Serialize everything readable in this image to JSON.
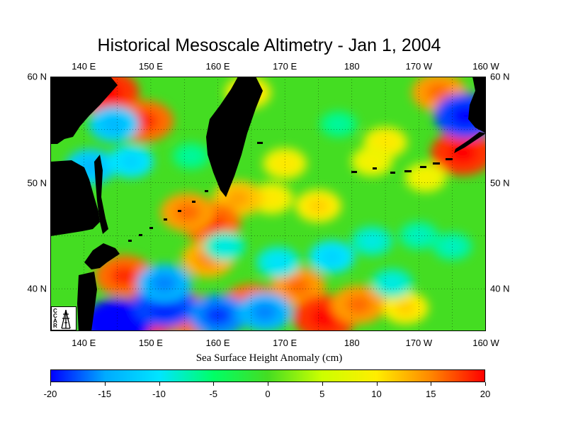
{
  "title": "Historical Mesoscale Altimetry - Jan 1, 2004",
  "map": {
    "extent": {
      "lon_min": 135,
      "lon_max": 200,
      "lat_min": 36,
      "lat_max": 60
    },
    "lon_ticks": [
      {
        "label": "140 E",
        "value": 140
      },
      {
        "label": "150 E",
        "value": 150
      },
      {
        "label": "160 E",
        "value": 160
      },
      {
        "label": "170 E",
        "value": 170
      },
      {
        "label": "180",
        "value": 180
      },
      {
        "label": "170 W",
        "value": 190
      },
      {
        "label": "160 W",
        "value": 200
      }
    ],
    "lat_ticks": [
      {
        "label": "60 N",
        "value": 60
      },
      {
        "label": "50 N",
        "value": 50
      },
      {
        "label": "40 N",
        "value": 40
      }
    ],
    "grid": true,
    "colors": {
      "land": "#000000",
      "background_field": "#44dd22"
    },
    "anomaly_features": [
      {
        "lon": 143.5,
        "lat": 58.5,
        "value": 18
      },
      {
        "lon": 149,
        "lat": 55.8,
        "value": 16
      },
      {
        "lon": 164.5,
        "lat": 58.5,
        "value": 10
      },
      {
        "lon": 168,
        "lat": 48.5,
        "value": 9
      },
      {
        "lon": 170,
        "lat": 51.8,
        "value": 9
      },
      {
        "lon": 175,
        "lat": 47.8,
        "value": 10
      },
      {
        "lon": 163,
        "lat": 48.5,
        "value": 12
      },
      {
        "lon": 159,
        "lat": 46.2,
        "value": 16
      },
      {
        "lon": 155.5,
        "lat": 47.2,
        "value": 14
      },
      {
        "lon": 146,
        "lat": 41.2,
        "value": 16
      },
      {
        "lon": 158.5,
        "lat": 42.8,
        "value": 13
      },
      {
        "lon": 172,
        "lat": 40.2,
        "value": 14
      },
      {
        "lon": 176,
        "lat": 37.3,
        "value": 18
      },
      {
        "lon": 181,
        "lat": 38.5,
        "value": 14
      },
      {
        "lon": 165,
        "lat": 38.5,
        "value": 16
      },
      {
        "lon": 150,
        "lat": 37.5,
        "value": 18
      },
      {
        "lon": 156,
        "lat": 37.5,
        "value": 16
      },
      {
        "lon": 196.5,
        "lat": 52.8,
        "value": 18
      },
      {
        "lon": 193,
        "lat": 58.5,
        "value": 14
      },
      {
        "lon": 185,
        "lat": 53.8,
        "value": 9
      },
      {
        "lon": 188,
        "lat": 38.2,
        "value": 10
      },
      {
        "lon": 183,
        "lat": 52,
        "value": 8
      },
      {
        "lon": 191,
        "lat": 50.5,
        "value": 8
      },
      {
        "lon": 145,
        "lat": 36.8,
        "value": -20
      },
      {
        "lon": 152,
        "lat": 38.5,
        "value": -18
      },
      {
        "lon": 160,
        "lat": 37.5,
        "value": -16
      },
      {
        "lon": 167,
        "lat": 37.8,
        "value": -14
      },
      {
        "lon": 152,
        "lat": 40.5,
        "value": -14
      },
      {
        "lon": 141,
        "lat": 51.5,
        "value": -12
      },
      {
        "lon": 144.5,
        "lat": 55.5,
        "value": -12
      },
      {
        "lon": 147,
        "lat": 52,
        "value": -10
      },
      {
        "lon": 177,
        "lat": 43,
        "value": -10
      },
      {
        "lon": 183,
        "lat": 44.5,
        "value": -8
      },
      {
        "lon": 197,
        "lat": 56.3,
        "value": -18
      },
      {
        "lon": 169,
        "lat": 42.5,
        "value": -9
      },
      {
        "lon": 161,
        "lat": 44,
        "value": -8
      },
      {
        "lon": 190,
        "lat": 45,
        "value": -7
      },
      {
        "lon": 195,
        "lat": 44,
        "value": -7
      },
      {
        "lon": 178,
        "lat": 55.5,
        "value": -6
      },
      {
        "lon": 156,
        "lat": 52.5,
        "value": -6
      },
      {
        "lon": 186,
        "lat": 40.5,
        "value": -8
      }
    ]
  },
  "colorbar": {
    "label": "Sea Surface Height Anomaly (cm)",
    "min": -20,
    "max": 20,
    "ticks": [
      "-20",
      "-15",
      "-10",
      "-5",
      "0",
      "5",
      "10",
      "15",
      "20"
    ],
    "colors": [
      "#0000ff",
      "#00aaff",
      "#00e5ff",
      "#00ff66",
      "#44dd22",
      "#ccff00",
      "#ffee00",
      "#ff8800",
      "#ff0000"
    ]
  },
  "logo_letters": [
    "C",
    "C",
    "A",
    "R"
  ]
}
